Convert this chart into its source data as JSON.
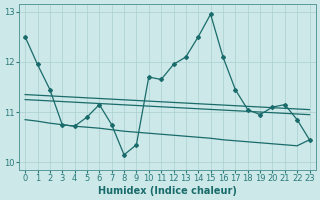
{
  "xlabel": "Humidex (Indice chaleur)",
  "ylabel": "",
  "bg_color": "#cce8e8",
  "grid_color": "#aacfcf",
  "line_color": "#1a6b6b",
  "xlim": [
    -0.5,
    23.5
  ],
  "ylim": [
    9.85,
    13.15
  ],
  "yticks": [
    10,
    11,
    12,
    13
  ],
  "xticks": [
    0,
    1,
    2,
    3,
    4,
    5,
    6,
    7,
    8,
    9,
    10,
    11,
    12,
    13,
    14,
    15,
    16,
    17,
    18,
    19,
    20,
    21,
    22,
    23
  ],
  "main_x": [
    0,
    1,
    2,
    3,
    4,
    5,
    6,
    7,
    8,
    9,
    10,
    11,
    12,
    13,
    14,
    15,
    16,
    17,
    18,
    19,
    20,
    21,
    22,
    23
  ],
  "main_y": [
    12.5,
    11.95,
    11.45,
    10.75,
    10.72,
    10.9,
    11.15,
    10.75,
    10.15,
    10.35,
    11.7,
    11.65,
    11.95,
    12.1,
    12.5,
    12.95,
    12.1,
    11.45,
    11.05,
    10.95,
    11.1,
    11.15,
    10.85,
    10.45
  ],
  "trend1_x": [
    0,
    23
  ],
  "trend1_y": [
    11.35,
    11.05
  ],
  "trend2_x": [
    0,
    23
  ],
  "trend2_y": [
    11.25,
    10.95
  ],
  "lower_x": [
    0,
    1,
    2,
    3,
    4,
    5,
    6,
    7,
    8,
    9,
    10,
    11,
    12,
    13,
    14,
    15,
    16,
    17,
    18,
    19,
    20,
    21,
    22,
    23
  ],
  "lower_y": [
    10.85,
    10.82,
    10.78,
    10.75,
    10.72,
    10.7,
    10.68,
    10.65,
    10.62,
    10.6,
    10.58,
    10.56,
    10.54,
    10.52,
    10.5,
    10.48,
    10.45,
    10.43,
    10.41,
    10.39,
    10.37,
    10.35,
    10.33,
    10.45
  ]
}
